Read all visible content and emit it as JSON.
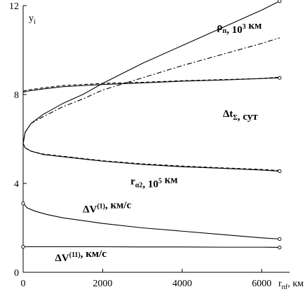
{
  "chart_data": {
    "type": "line",
    "xlabel": "r",
    "xlabel_sub": "пf",
    "xlabel_unit": ", км",
    "ylabel": "y",
    "ylabel_sub": "i",
    "xlim": [
      0,
      6700
    ],
    "ylim": [
      0,
      12
    ],
    "xticks": [
      0,
      2000,
      4000,
      6000
    ],
    "yticks": [
      0,
      4,
      8,
      12
    ],
    "xtick_labels": [
      "0",
      "2000",
      "4000",
      "6000"
    ],
    "ytick_labels": [
      "0",
      "4",
      "8",
      "12"
    ],
    "grid": false,
    "series": [
      {
        "id": "rho-solid",
        "style": "solid",
        "x": [
          0,
          50,
          200,
          500,
          1000,
          1500,
          2000,
          3000,
          4000,
          5000,
          6000,
          6450
        ],
        "y": [
          5.8,
          6.3,
          6.7,
          7.1,
          7.6,
          8.0,
          8.5,
          9.4,
          10.2,
          11.0,
          11.8,
          12.2
        ]
      },
      {
        "id": "rho-dashdot",
        "style": "dashdot",
        "x": [
          0,
          50,
          200,
          500,
          1000,
          1500,
          2000,
          3000,
          4000,
          5000,
          6000,
          6450
        ],
        "y": [
          5.8,
          6.3,
          6.7,
          7.0,
          7.45,
          7.8,
          8.2,
          8.75,
          9.3,
          9.8,
          10.3,
          10.55
        ]
      },
      {
        "id": "dt-solid",
        "style": "solid",
        "x": [
          0,
          100,
          500,
          1000,
          2000,
          3000,
          4000,
          5000,
          6000,
          6450
        ],
        "y": [
          8.1,
          8.15,
          8.25,
          8.35,
          8.45,
          8.52,
          8.6,
          8.65,
          8.72,
          8.75
        ]
      },
      {
        "id": "dt-dash",
        "style": "dashed",
        "x": [
          0,
          100,
          500,
          1000,
          2000,
          3000,
          4000,
          5000,
          6000,
          6450
        ],
        "y": [
          8.15,
          8.2,
          8.3,
          8.4,
          8.5,
          8.55,
          8.62,
          8.67,
          8.72,
          8.78
        ]
      },
      {
        "id": "ra2-solid",
        "style": "solid",
        "x": [
          0,
          50,
          200,
          500,
          1000,
          1500,
          2000,
          3000,
          4000,
          5000,
          6000,
          6450
        ],
        "y": [
          5.8,
          5.6,
          5.45,
          5.3,
          5.2,
          5.1,
          5.0,
          4.85,
          4.75,
          4.68,
          4.6,
          4.55
        ]
      },
      {
        "id": "ra2-dash",
        "style": "dashed",
        "x": [
          0,
          50,
          200,
          500,
          1000,
          1500,
          2000,
          3000,
          4000,
          5000,
          6000,
          6450
        ],
        "y": [
          5.8,
          5.6,
          5.45,
          5.32,
          5.22,
          5.12,
          5.02,
          4.88,
          4.78,
          4.7,
          4.63,
          4.58
        ]
      },
      {
        "id": "dv1",
        "style": "solid",
        "x": [
          0,
          100,
          300,
          600,
          1000,
          2000,
          3000,
          4000,
          5000,
          6000,
          6450
        ],
        "y": [
          3.1,
          2.9,
          2.75,
          2.6,
          2.45,
          2.2,
          2.0,
          1.85,
          1.7,
          1.55,
          1.5
        ]
      },
      {
        "id": "dv2",
        "style": "solid",
        "x": [
          0,
          1000,
          2000,
          3000,
          4000,
          5000,
          6000,
          6450
        ],
        "y": [
          1.15,
          1.15,
          1.15,
          1.14,
          1.14,
          1.13,
          1.13,
          1.12
        ]
      }
    ],
    "markers": [
      {
        "x": 6450,
        "y": 12.2
      },
      {
        "x": 6450,
        "y": 8.75
      },
      {
        "x": 6450,
        "y": 4.55
      },
      {
        "x": 6450,
        "y": 1.5
      },
      {
        "x": 6450,
        "y": 1.12
      },
      {
        "x": 0,
        "y": 3.1
      },
      {
        "x": 0,
        "y": 1.15
      }
    ],
    "annotations": [
      {
        "base": "ρ",
        "sub": "п",
        "tail": ", 10",
        "sup": "3",
        "end": " км",
        "ax": 6000,
        "ay": 10.9
      },
      {
        "base": "Δt",
        "sub": "Σ",
        "tail": ", сут",
        "sup": "",
        "end": "",
        "ax": 5900,
        "ay": 7.0
      },
      {
        "base": "r",
        "sub": "α2",
        "tail": ", 10",
        "sup": "5",
        "end": " км",
        "ax": 2700,
        "ay": 3.95
      },
      {
        "base": "ΔV",
        "sup0": "(1)",
        "sub": "",
        "tail": ", км/с",
        "sup": "",
        "end": "",
        "ax": 1500,
        "ay": 2.7
      },
      {
        "base": "ΔV",
        "sup0": "(11)",
        "sub": "",
        "tail": ", км/с",
        "sup": "",
        "end": "",
        "ax": 800,
        "ay": 0.5
      }
    ]
  }
}
